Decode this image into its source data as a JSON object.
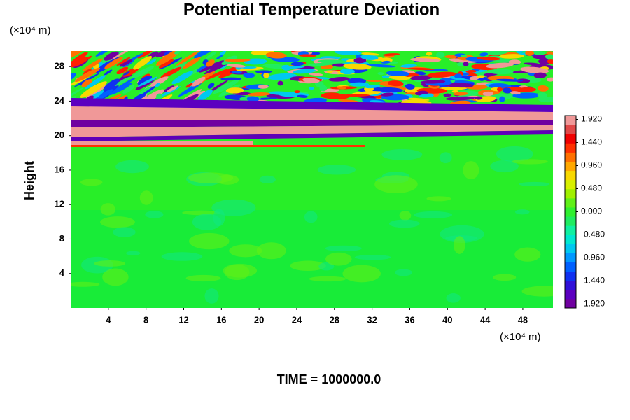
{
  "chart_data": {
    "type": "heatmap",
    "title": "Potential Temperature Deviation",
    "ylabel": "Height",
    "y_unit_label": "(×10⁴ m)",
    "x_unit_label": "(×10⁴ m)",
    "annotation": "TIME = 1000000.0",
    "xlim": [
      0,
      51.2
    ],
    "xticks": [
      4,
      8,
      12,
      16,
      20,
      24,
      28,
      32,
      36,
      40,
      44,
      48
    ],
    "ylim": [
      0,
      29.8
    ],
    "yticks": [
      4,
      8,
      12,
      16,
      20,
      24,
      28
    ],
    "colorbar": {
      "lim": [
        -2,
        2
      ],
      "ticks": [
        {
          "value": 1.92,
          "label": "1.920"
        },
        {
          "value": 1.44,
          "label": "1.440"
        },
        {
          "value": 0.96,
          "label": "0.960"
        },
        {
          "value": 0.48,
          "label": "0.480"
        },
        {
          "value": 0,
          "label": "0.000"
        },
        {
          "value": -0.48,
          "label": "-0.480"
        },
        {
          "value": -0.96,
          "label": "-0.960"
        },
        {
          "value": -1.44,
          "label": "-1.440"
        },
        {
          "value": -1.92,
          "label": "-1.920"
        }
      ],
      "colors": [
        "#7000a0",
        "#5c00c0",
        "#3010d8",
        "#1030f0",
        "#0060ff",
        "#0098ff",
        "#00c8f0",
        "#00e8d0",
        "#10f0a0",
        "#20ec60",
        "#30f030",
        "#60f018",
        "#a0f000",
        "#d8f000",
        "#f8d800",
        "#ffa800",
        "#ff7000",
        "#ff3000",
        "#f00000",
        "#e04848",
        "#f09898"
      ]
    }
  }
}
